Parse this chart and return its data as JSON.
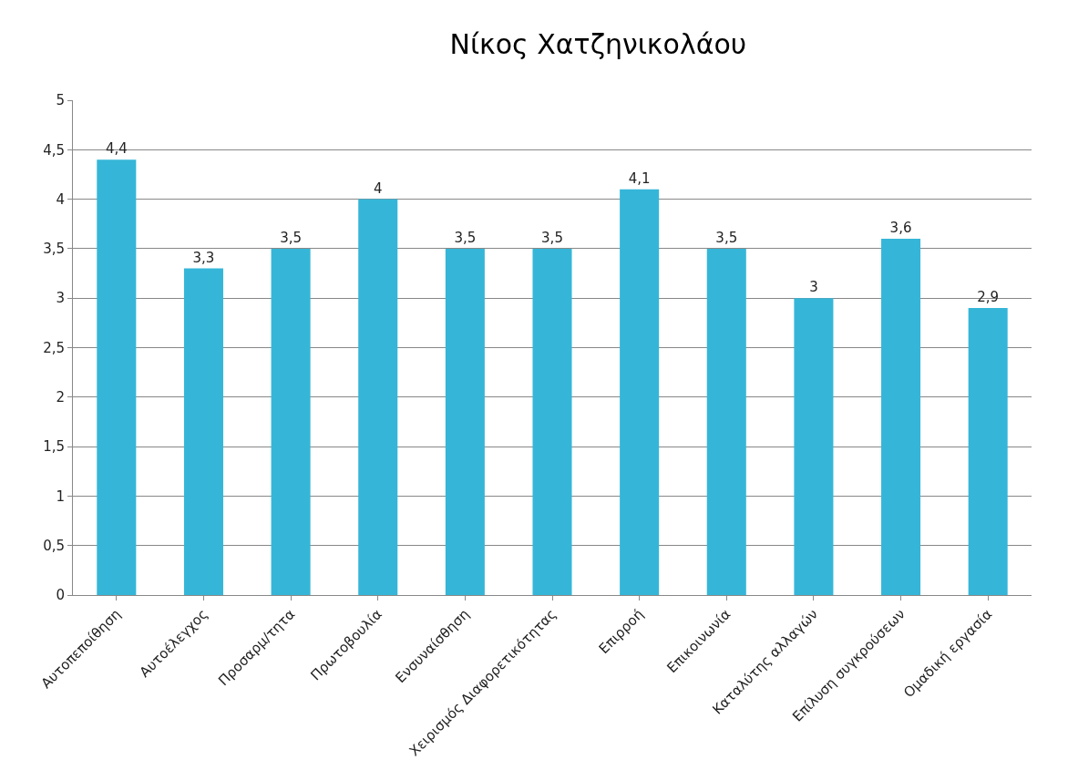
{
  "chart_data": {
    "type": "bar",
    "title": "Νίκος Χατζηνικολάου",
    "categories": [
      "Αυτοπεποίθηση",
      "Αυτοέλεγχος",
      "Προσαρμ/τητα",
      "Πρωτοβουλία",
      "Ενσυναίσθηση",
      "Χειρισμός Διαφορετικότητας",
      "Επιρροή",
      "Επικοινωνία",
      "Καταλύτης αλλαγών",
      "Επίλυση συγκρούσεων",
      "Ομαδική εργασία"
    ],
    "values": [
      4.4,
      3.3,
      3.5,
      4,
      3.5,
      3.5,
      4.1,
      3.5,
      3,
      3.6,
      2.9
    ],
    "value_labels": [
      "4,4",
      "3,3",
      "3,5",
      "4",
      "3,5",
      "3,5",
      "4,1",
      "3,5",
      "3",
      "3,6",
      "2,9"
    ],
    "color": "#35b6d8",
    "ylim": [
      0,
      5
    ],
    "yticks": [
      0,
      {
        "value": 0.5,
        "label": "0,5"
      },
      1,
      {
        "value": 1.5,
        "label": "1,5"
      },
      2,
      {
        "value": 2.5,
        "label": "2,5"
      },
      3,
      {
        "value": 3.5,
        "label": "3,5"
      },
      4,
      {
        "value": 4.5,
        "label": "4,5"
      },
      5
    ],
    "grid": "y"
  }
}
